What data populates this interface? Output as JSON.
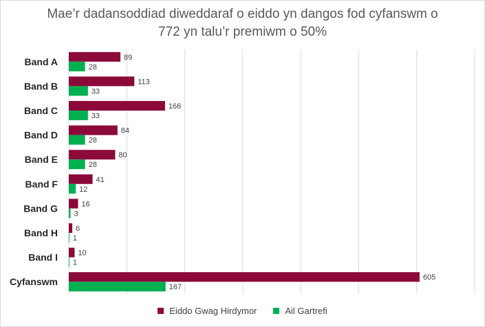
{
  "chart_data": {
    "type": "bar",
    "orientation": "horizontal",
    "title_line1": "Mae’r dadansoddiad diweddaraf o eiddo yn dangos fod cyfanswm o",
    "title_line2": "772 yn talu’r premiwm o 50%",
    "categories": [
      "Band A",
      "Band B",
      "Band C",
      "Band D",
      "Band E",
      "Band F",
      "Band G",
      "Band H",
      "Band I",
      "Cyfanswm"
    ],
    "series": [
      {
        "name": "Eiddo Gwag Hirdymor",
        "color": "#8b0a3a",
        "values": [
          89,
          113,
          166,
          84,
          80,
          41,
          16,
          6,
          10,
          605
        ]
      },
      {
        "name": "Ail Gartrefi",
        "color": "#00b050",
        "values": [
          28,
          33,
          33,
          28,
          28,
          12,
          3,
          1,
          1,
          167
        ]
      }
    ],
    "xlim": [
      0,
      700
    ],
    "gridlines": "vertical",
    "legend_position": "bottom"
  }
}
